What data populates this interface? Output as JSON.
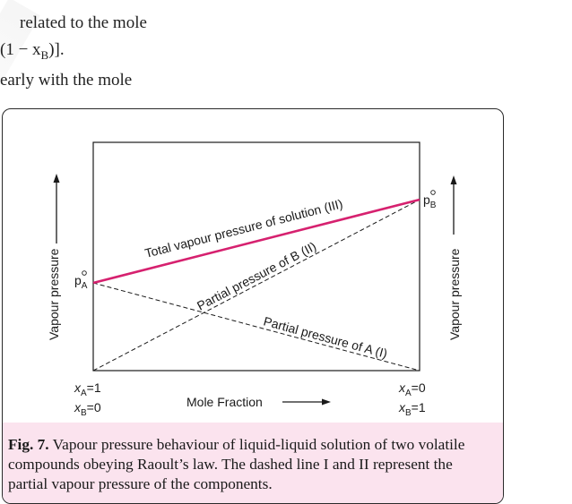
{
  "top_text": {
    "line1": "related to the mole",
    "line2": "(1 − x",
    "line2_sub": "B",
    "line2_end": ")].",
    "line3": "early with the mole"
  },
  "figure": {
    "y_axis_label_left": "Vapour pressure",
    "y_axis_label_right": "Vapour pressure",
    "x_axis_label": "Mole Fraction",
    "pA0_label": "p",
    "pA0_sub": "A",
    "pB0_label": "p",
    "pB0_sub": "B",
    "left_xA": "x",
    "left_xA_sub": "A",
    "left_xA_val": "=1",
    "left_xB": "x",
    "left_xB_sub": "B",
    "left_xB_val": "=0",
    "right_xA": "x",
    "right_xA_sub": "A",
    "right_xA_val": "=0",
    "right_xB": "x",
    "right_xB_sub": "B",
    "right_xB_val": "=1",
    "line_total": "Total vapour pressure of solution (III)",
    "line_B": "Partial pressure of B (II)",
    "line_A": "Partial pressure of A (I)",
    "total_line_color": "#d6216f"
  },
  "caption": {
    "bold": "Fig. 7.",
    "text": " Vapour pressure behaviour of liquid-liquid solution of two volatile compounds obeying Raoult’s law. The dashed line I and II represent the partial vapour pressure of the components."
  }
}
